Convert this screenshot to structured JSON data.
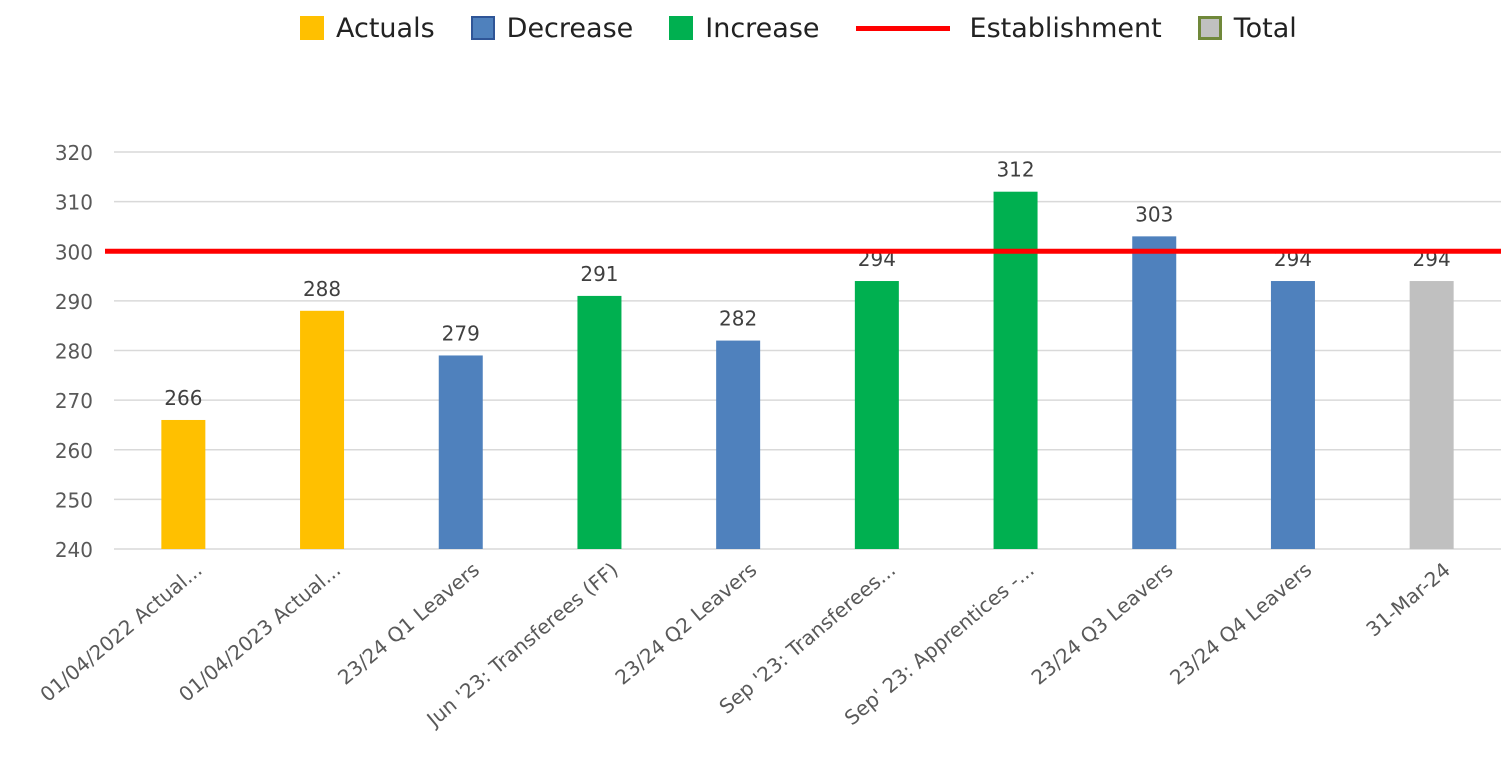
{
  "legend": [
    {
      "label": "Actuals",
      "color": "#FFC000",
      "kind": "square",
      "icon": "actuals-swatch"
    },
    {
      "label": "Decrease",
      "color": "#4F81BD",
      "kind": "boxed-square",
      "icon": "decrease-swatch"
    },
    {
      "label": "Increase",
      "color": "#00B050",
      "kind": "square",
      "icon": "increase-swatch"
    },
    {
      "label": "Establishment",
      "color": "#FF0000",
      "kind": "line",
      "icon": "establishment-line-swatch"
    },
    {
      "label": "Total",
      "color": "#C0C0C0",
      "kind": "boxed-total",
      "icon": "total-swatch"
    }
  ],
  "chart_data": {
    "type": "bar",
    "categories": [
      "01/04/2022 Actual...",
      "01/04/2023 Actual...",
      "23/24 Q1 Leavers",
      "Jun '23: Transferees (FF)",
      "23/24 Q2 Leavers",
      "Sep '23: Transferees...",
      "Sep' 23: Apprentices -...",
      "23/24 Q3 Leavers",
      "23/24 Q4 Leavers",
      "31-Mar-24"
    ],
    "values": [
      266,
      288,
      279,
      291,
      282,
      294,
      312,
      303,
      294,
      294
    ],
    "data_labels": [
      "266",
      "288",
      "279",
      "291",
      "282",
      "294",
      "312",
      "303",
      "294",
      "294"
    ],
    "bar_types": [
      "Actuals",
      "Actuals",
      "Decrease",
      "Increase",
      "Decrease",
      "Increase",
      "Increase",
      "Decrease",
      "Decrease",
      "Total"
    ],
    "establishment": 300,
    "ylim": [
      240,
      320
    ],
    "y_ticks": [
      240,
      250,
      260,
      270,
      280,
      290,
      300,
      310,
      320
    ],
    "grid": true,
    "legend_position": "top",
    "title": "",
    "xlabel": "",
    "ylabel": "",
    "colors": {
      "Actuals": "#FFC000",
      "Decrease": "#4F81BD",
      "Increase": "#00B050",
      "Total": "#C0C0C0",
      "Establishment": "#FF0000",
      "grid": "#D9D9D9",
      "axis_text": "#595959",
      "label_text": "#404040"
    }
  }
}
